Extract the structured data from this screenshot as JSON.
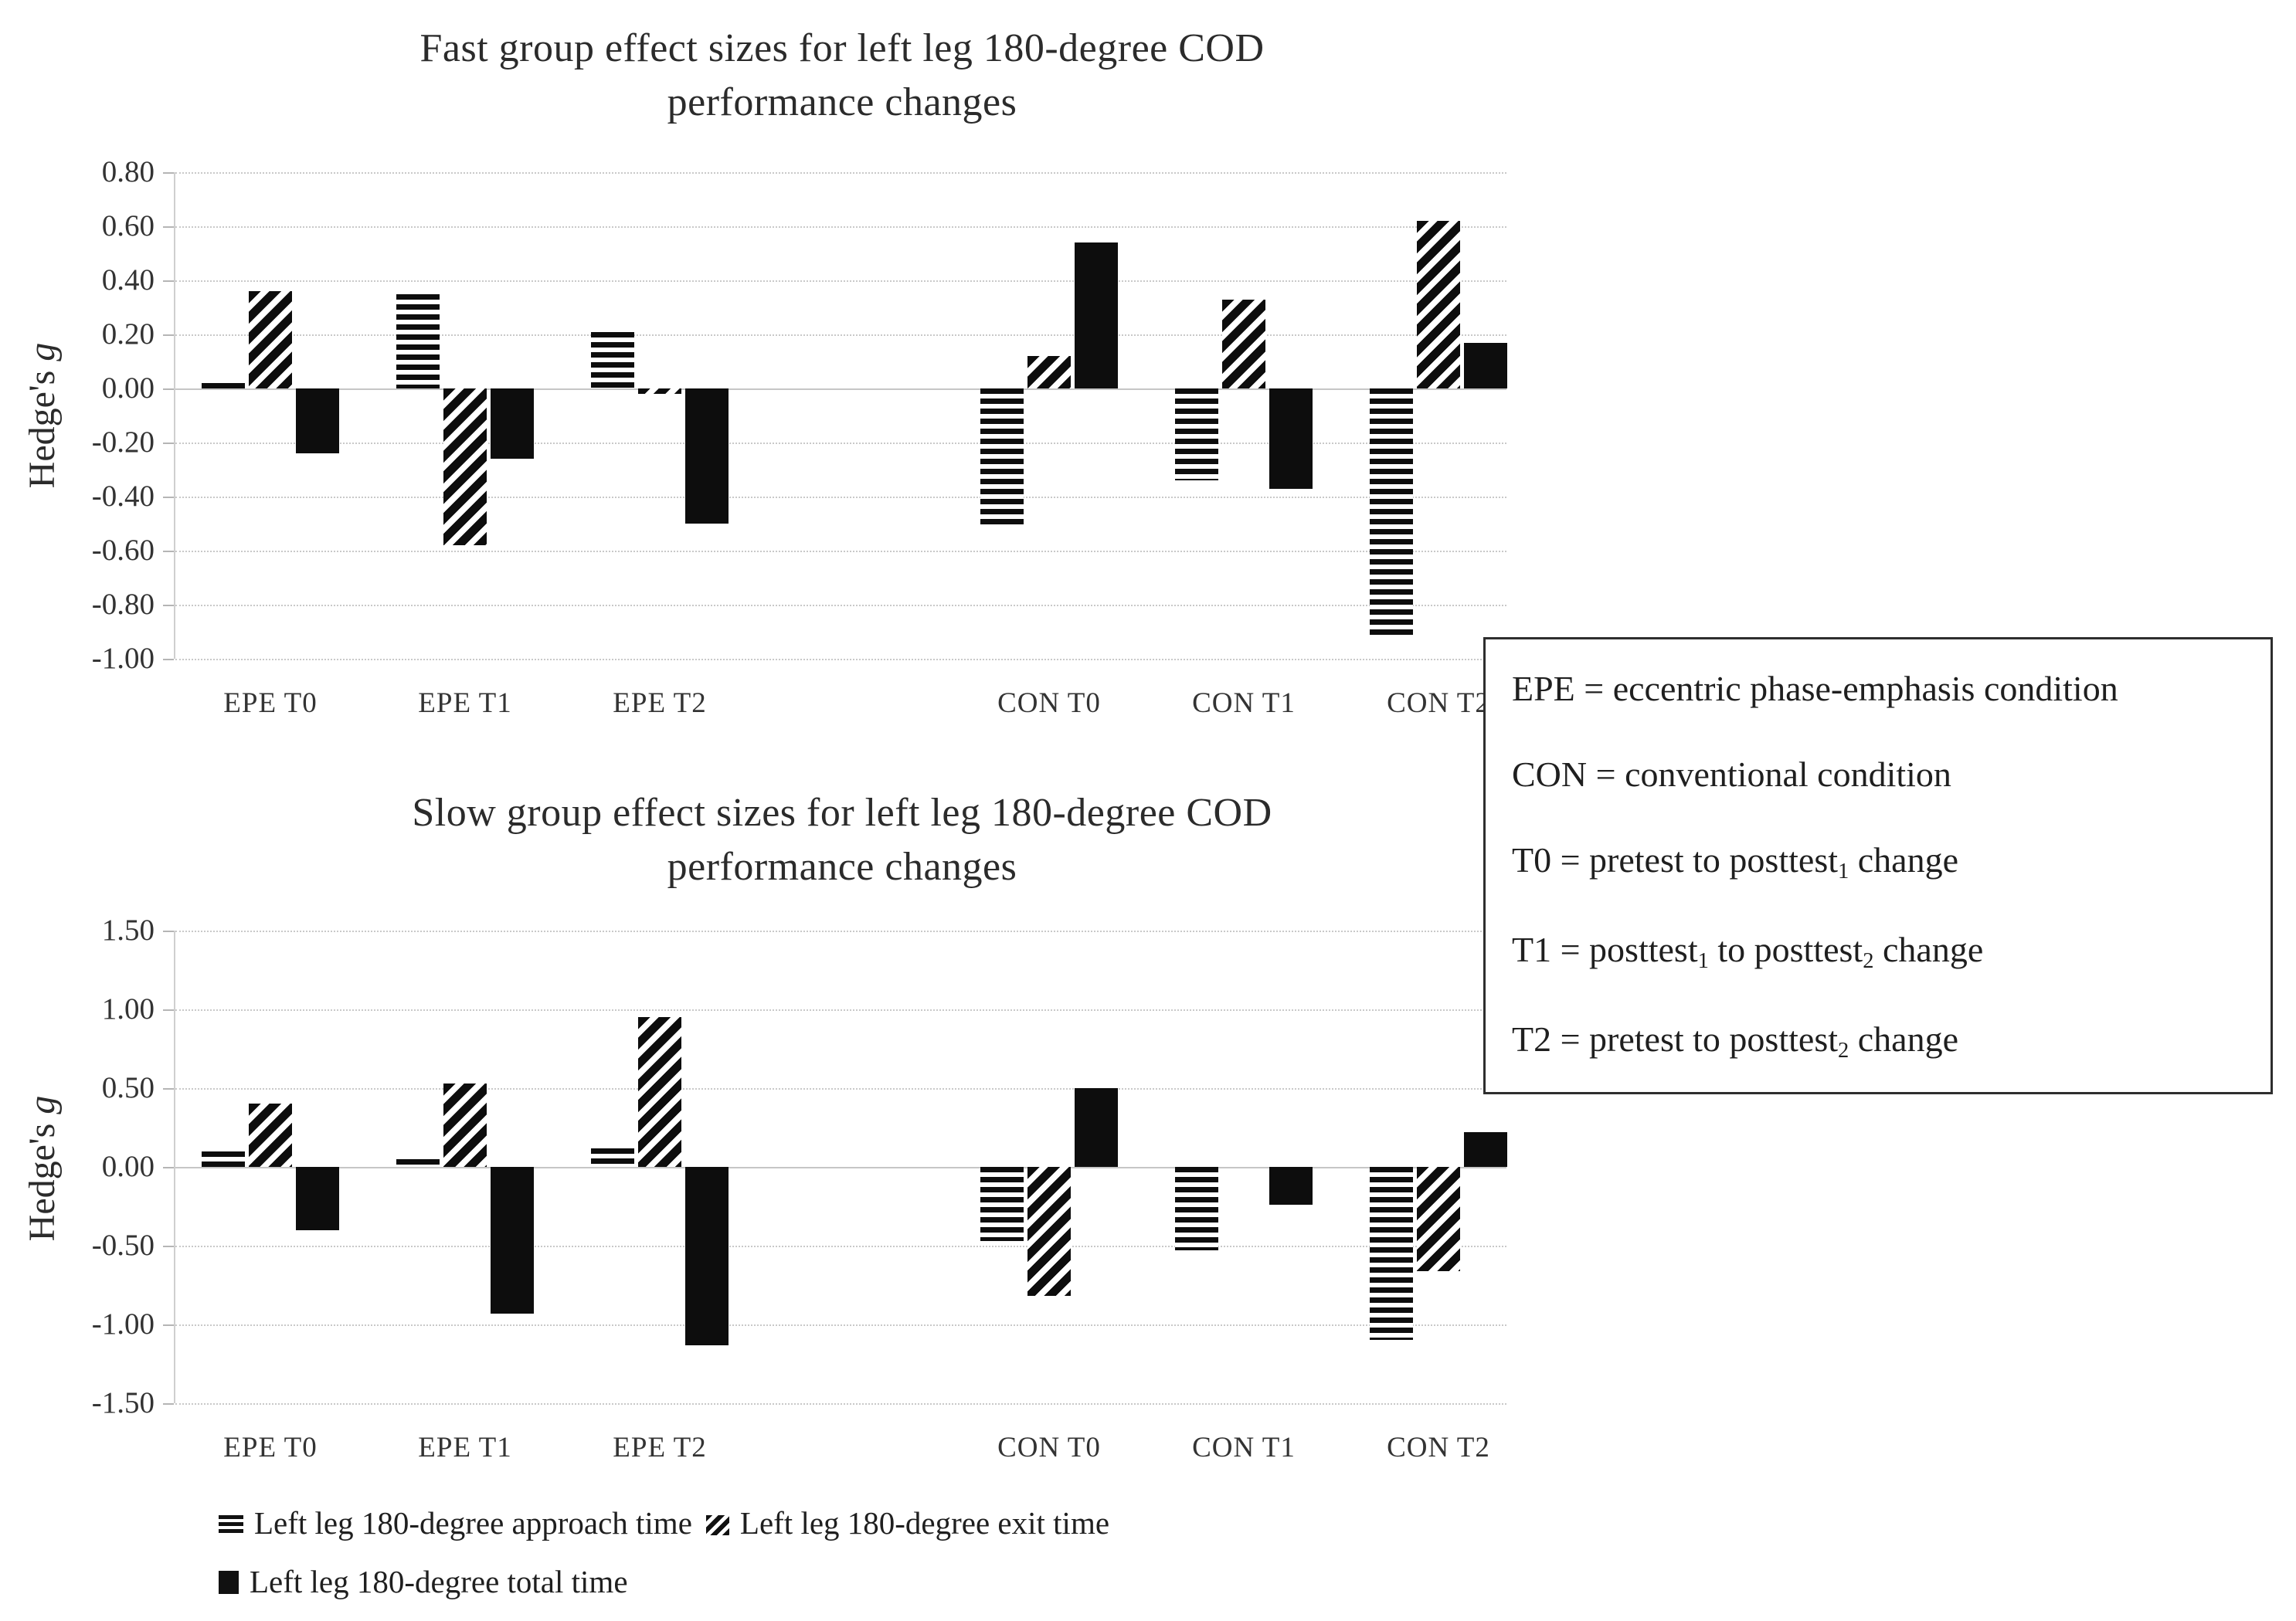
{
  "chart_data": [
    {
      "type": "bar",
      "id": "fast",
      "title_lines": [
        "Fast group effect sizes for left leg 180-degree COD",
        "performance changes"
      ],
      "ylabel_parts": [
        {
          "t": "Hedge's "
        },
        {
          "t": "g",
          "i": true
        }
      ],
      "ylim": [
        -1.0,
        0.8
      ],
      "ytick_step": 0.2,
      "ytick_labels": [
        "0.80",
        "0.60",
        "0.40",
        "0.20",
        "0.00",
        "-0.20",
        "-0.40",
        "-0.60",
        "-0.80",
        "-1.00"
      ],
      "categories": [
        "EPE T0",
        "EPE T1",
        "EPE T2",
        "CON T0",
        "CON T1",
        "CON T2"
      ],
      "grid": "dotted",
      "legend_position": "none",
      "series": [
        {
          "name": "Left leg 180-degree approach time",
          "key": "approach",
          "pattern": "hstripes",
          "values": [
            0.02,
            0.35,
            0.21,
            -0.51,
            -0.34,
            -0.92
          ]
        },
        {
          "name": "Left leg 180-degree exit time",
          "key": "exit",
          "pattern": "diag",
          "values": [
            0.36,
            -0.58,
            -0.02,
            0.12,
            0.33,
            0.62
          ]
        },
        {
          "name": "Left leg 180-degree total time",
          "key": "total",
          "pattern": "solid",
          "values": [
            -0.24,
            -0.26,
            -0.5,
            0.54,
            -0.37,
            0.17
          ]
        }
      ]
    },
    {
      "type": "bar",
      "id": "slow",
      "title_lines": [
        "Slow group effect sizes for left leg 180-degree COD",
        "performance changes"
      ],
      "ylabel_parts": [
        {
          "t": "Hedge's "
        },
        {
          "t": "g",
          "i": true
        }
      ],
      "ylim": [
        -1.5,
        1.5
      ],
      "ytick_step": 0.5,
      "ytick_labels": [
        "1.50",
        "1.00",
        "0.50",
        "0.00",
        "-0.50",
        "-1.00",
        "-1.50"
      ],
      "categories": [
        "EPE T0",
        "EPE T1",
        "EPE T2",
        "CON T0",
        "CON T1",
        "CON T2"
      ],
      "grid": "dotted",
      "legend_position": "none",
      "series": [
        {
          "name": "Left leg 180-degree approach time",
          "key": "approach",
          "pattern": "hstripes",
          "values": [
            0.1,
            0.05,
            0.12,
            -0.47,
            -0.53,
            -1.1
          ]
        },
        {
          "name": "Left leg 180-degree exit time",
          "key": "exit",
          "pattern": "diag",
          "values": [
            0.4,
            0.53,
            0.95,
            -0.82,
            0.0,
            -0.66
          ]
        },
        {
          "name": "Left leg 180-degree total time",
          "key": "total",
          "pattern": "solid",
          "values": [
            -0.4,
            -0.93,
            -1.13,
            0.5,
            -0.24,
            0.22
          ]
        }
      ]
    }
  ],
  "legend_box": {
    "lines": [
      [
        {
          "t": "EPE = eccentric phase-emphasis condition"
        }
      ],
      [
        {
          "t": "CON = conventional condition"
        }
      ],
      [
        {
          "t": "T0 = pretest to posttest"
        },
        {
          "t": "1",
          "sub": true
        },
        {
          "t": " change"
        }
      ],
      [
        {
          "t": "T1 = posttest"
        },
        {
          "t": "1",
          "sub": true
        },
        {
          "t": " to posttest"
        },
        {
          "t": "2",
          "sub": true
        },
        {
          "t": " change"
        }
      ],
      [
        {
          "t": "T2 = pretest to posttest"
        },
        {
          "t": "2",
          "sub": true
        },
        {
          "t": " change"
        }
      ]
    ]
  },
  "series_legend": {
    "approach_label": "Left leg 180-degree approach time",
    "exit_label": "Left leg 180-degree exit time",
    "total_label": "Left leg 180-degree total time"
  },
  "colors": {
    "bar": "#0d0d0d",
    "gridline": "#c9c9c9",
    "text": "#2b2b2b"
  }
}
